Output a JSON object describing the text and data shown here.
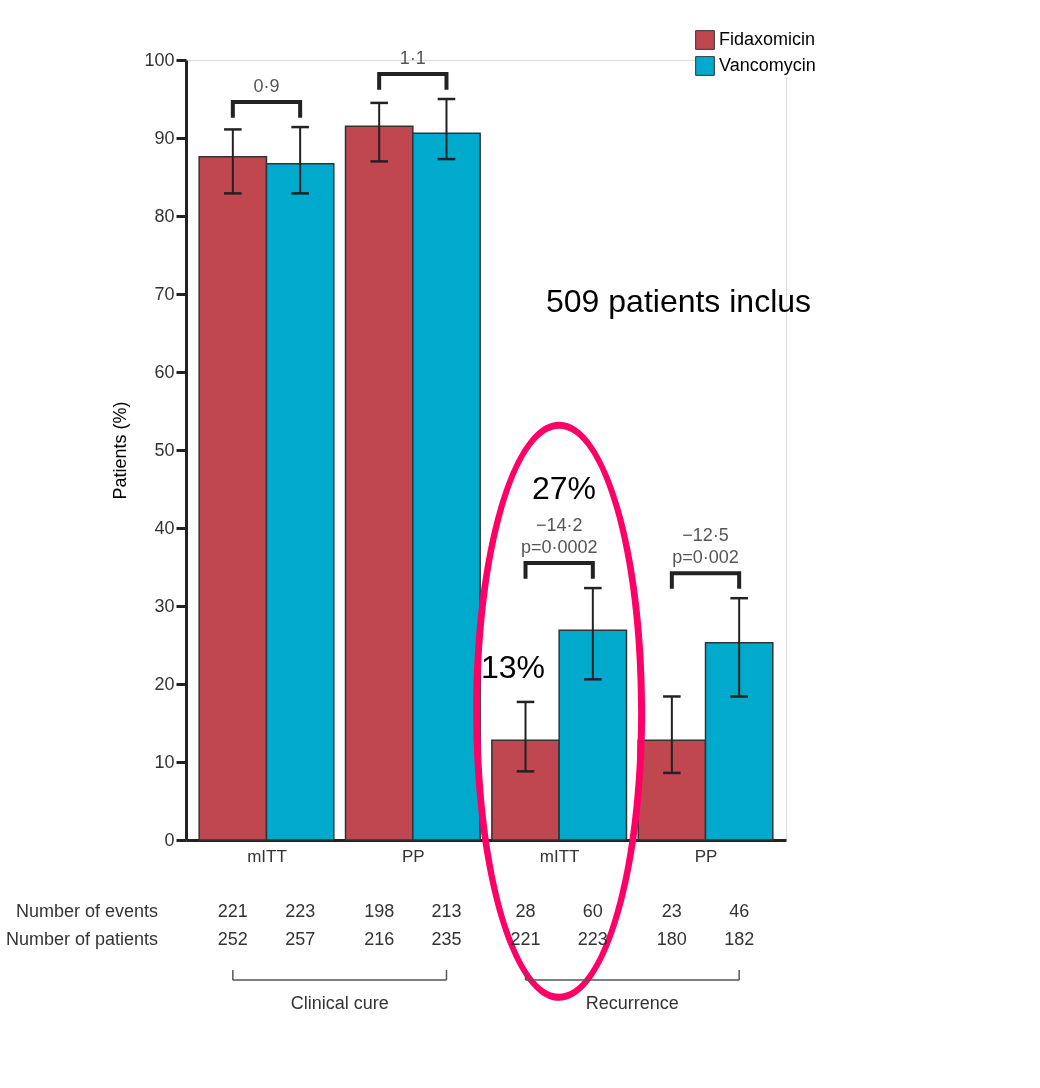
{
  "chart_data": {
    "type": "bar",
    "categories": [
      "mITT",
      "PP",
      "mITT",
      "PP"
    ],
    "ylabel": "Patients (%)",
    "ylim": [
      0,
      100
    ],
    "yticks": [
      0,
      10,
      20,
      30,
      40,
      50,
      60,
      70,
      80,
      90,
      100
    ],
    "grid": false,
    "legend": "top right",
    "series": [
      {
        "name": "Fidaxomicin",
        "color": "#c0464f",
        "values": [
          87.6,
          91.5,
          12.8,
          12.8
        ],
        "errors": [
          [
            82.9,
            91.1
          ],
          [
            87.0,
            94.5
          ],
          [
            8.8,
            17.7
          ],
          [
            8.6,
            18.4
          ]
        ]
      },
      {
        "name": "Vancomycin",
        "color": "#00aacc",
        "values": [
          86.7,
          90.6,
          26.9,
          25.3
        ],
        "errors": [
          [
            82.9,
            91.4
          ],
          [
            87.3,
            95.0
          ],
          [
            20.6,
            32.3
          ],
          [
            18.4,
            31.0
          ]
        ]
      }
    ],
    "annotations": [
      "0·9",
      "1·1",
      "−14·2\np=0·0002",
      "−12·5\np=0·002",
      "509 patients inclus",
      "27%",
      "13%",
      "Number of events",
      "221 223 198 213 28 60 23 46",
      "Number of patients",
      "252 257 216 235 221 223 180 182",
      "Clinical cure",
      "Recurrence"
    ]
  }
}
